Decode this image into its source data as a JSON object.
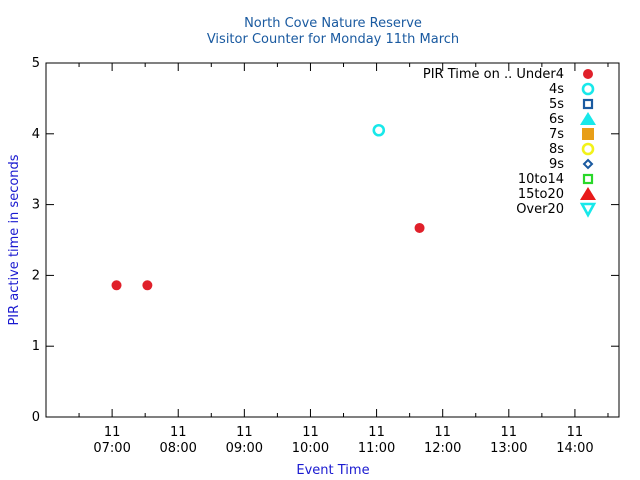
{
  "chart_data": {
    "type": "scatter",
    "title": "North Cove Nature Reserve",
    "subtitle": "Visitor Counter for Monday 11th March",
    "xlabel": "Event Time",
    "ylabel": "PIR active time in seconds",
    "xlim": [
      "06:00",
      "14:40"
    ],
    "ylim": [
      0,
      5
    ],
    "y_ticks": [
      0,
      1,
      2,
      3,
      4,
      5
    ],
    "x_ticks": [
      {
        "time": "07:00",
        "day": "11",
        "label": "07:00"
      },
      {
        "time": "08:00",
        "day": "11",
        "label": "08:00"
      },
      {
        "time": "09:00",
        "day": "11",
        "label": "09:00"
      },
      {
        "time": "10:00",
        "day": "11",
        "label": "10:00"
      },
      {
        "time": "11:00",
        "day": "11",
        "label": "11:00"
      },
      {
        "time": "12:00",
        "day": "11",
        "label": "12:00"
      },
      {
        "time": "13:00",
        "day": "11",
        "label": "13:00"
      },
      {
        "time": "14:00",
        "day": "11",
        "label": "14:00"
      }
    ],
    "grid": false,
    "legend_title": "PIR Time on ..",
    "legend_position": "top-right",
    "series": [
      {
        "name": "Under4",
        "marker": "filled-circle",
        "color": "#e0202a",
        "points": [
          {
            "x": "07:04",
            "y": 1.86
          },
          {
            "x": "07:32",
            "y": 1.86
          },
          {
            "x": "11:39",
            "y": 2.67
          }
        ]
      },
      {
        "name": "4s",
        "marker": "open-circle",
        "color": "#18e8ea",
        "points": [
          {
            "x": "11:02",
            "y": 4.05
          }
        ]
      },
      {
        "name": "5s",
        "marker": "open-square",
        "color": "#1a5aa0",
        "points": []
      },
      {
        "name": "6s",
        "marker": "filled-triangle",
        "color": "#18e8ea",
        "points": []
      },
      {
        "name": "7s",
        "marker": "filled-square",
        "color": "#e89e18",
        "points": []
      },
      {
        "name": "8s",
        "marker": "open-circle",
        "color": "#f2f21a",
        "points": []
      },
      {
        "name": "9s",
        "marker": "open-diamond",
        "color": "#1a5aa0",
        "points": []
      },
      {
        "name": "10to14",
        "marker": "open-square",
        "color": "#2ad82a",
        "points": []
      },
      {
        "name": "15to20",
        "marker": "filled-triangle",
        "color": "#e81a1a",
        "points": []
      },
      {
        "name": "Over20",
        "marker": "open-triangle-down",
        "color": "#18e8ea",
        "points": []
      }
    ]
  }
}
